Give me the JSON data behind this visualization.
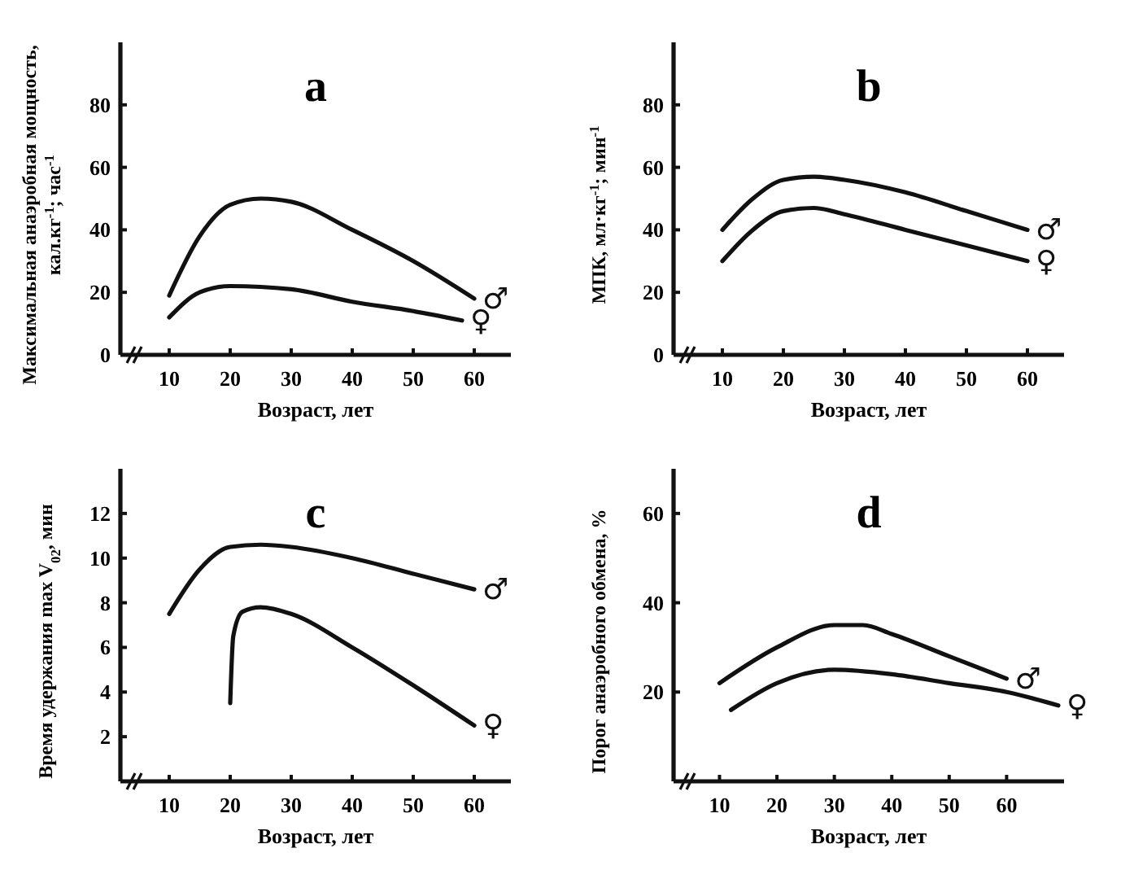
{
  "chart_data": [
    {
      "type": "line",
      "title": "a",
      "xlabel": "Возраст, лет",
      "ylabel": "Максимальная анаэробная мощность, кал.кг$^{-1}$; час$^{-1}$",
      "xlim": [
        2,
        66
      ],
      "xticks": [
        10,
        20,
        30,
        40,
        50,
        60
      ],
      "ylim": [
        0,
        100
      ],
      "yticks": [
        0,
        20,
        40,
        60,
        80
      ],
      "marker": "none",
      "line_style": "solid",
      "series": [
        {
          "name": "♂",
          "color": "#111111",
          "x": [
            10,
            15,
            20,
            25,
            30,
            40,
            50,
            60
          ],
          "values": [
            19,
            38,
            48,
            50,
            49,
            40,
            30,
            18
          ]
        },
        {
          "name": "♀",
          "color": "#111111",
          "x": [
            10,
            15,
            20,
            30,
            40,
            50,
            58
          ],
          "values": [
            12,
            20,
            22,
            21,
            17,
            14,
            11
          ]
        }
      ]
    },
    {
      "type": "line",
      "title": "b",
      "xlabel": "Возраст, лет",
      "ylabel": "МПК, мл·кг$^{-1}$; мин$^{-1}$",
      "xlim": [
        2,
        66
      ],
      "xticks": [
        10,
        20,
        30,
        40,
        50,
        60
      ],
      "ylim": [
        0,
        100
      ],
      "yticks": [
        0,
        20,
        40,
        60,
        80
      ],
      "marker": "none",
      "line_style": "solid",
      "series": [
        {
          "name": "♂",
          "color": "#111111",
          "x": [
            10,
            15,
            20,
            25,
            30,
            40,
            50,
            60
          ],
          "values": [
            40,
            50,
            56,
            57,
            56,
            52,
            46,
            40
          ]
        },
        {
          "name": "♀",
          "color": "#111111",
          "x": [
            10,
            15,
            20,
            25,
            30,
            40,
            50,
            60
          ],
          "values": [
            30,
            40,
            46,
            47,
            45,
            40,
            35,
            30
          ]
        }
      ]
    },
    {
      "type": "line",
      "title": "c",
      "xlabel": "Возраст, лет",
      "ylabel": "Время удержания max V$_{02}$, мин",
      "xlim": [
        2,
        66
      ],
      "xticks": [
        10,
        20,
        30,
        40,
        50,
        60
      ],
      "ylim": [
        0,
        14
      ],
      "yticks": [
        2,
        4,
        6,
        8,
        10,
        12
      ],
      "marker": "none",
      "line_style": "solid",
      "series": [
        {
          "name": "♂",
          "color": "#111111",
          "x": [
            10,
            15,
            20,
            25,
            30,
            40,
            50,
            60
          ],
          "values": [
            7.5,
            9.5,
            10.5,
            10.6,
            10.5,
            10,
            9.3,
            8.6
          ]
        },
        {
          "name": "♀",
          "color": "#111111",
          "x": [
            20,
            20.5,
            22,
            25,
            30,
            40,
            50,
            60
          ],
          "values": [
            3.5,
            6.5,
            7.6,
            7.8,
            7.5,
            6,
            4.3,
            2.5
          ]
        }
      ]
    },
    {
      "type": "line",
      "title": "d",
      "xlabel": "Возраст, лет",
      "ylabel": "Порог анаэробного обмена, %",
      "xlim": [
        2,
        70
      ],
      "xticks": [
        10,
        20,
        30,
        40,
        50,
        60
      ],
      "ylim": [
        0,
        70
      ],
      "yticks": [
        20,
        40,
        60
      ],
      "marker": "none",
      "line_style": "solid",
      "series": [
        {
          "name": "♂",
          "color": "#111111",
          "x": [
            10,
            20,
            30,
            35,
            40,
            50,
            60
          ],
          "values": [
            22,
            30,
            35,
            35,
            33,
            28,
            23
          ]
        },
        {
          "name": "♀",
          "color": "#111111",
          "x": [
            12,
            20,
            30,
            40,
            50,
            60,
            69
          ],
          "values": [
            16,
            22,
            25,
            24,
            22,
            20,
            17
          ]
        }
      ]
    }
  ]
}
